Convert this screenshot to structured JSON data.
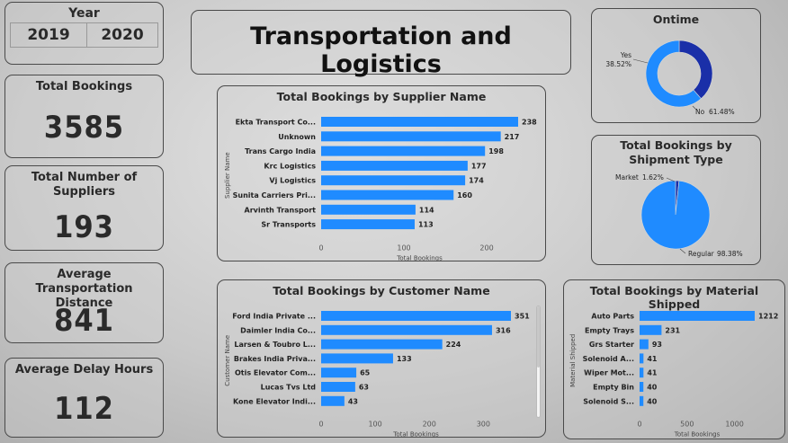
{
  "title": "Transportation and Logistics",
  "year": {
    "label": "Year",
    "options": [
      "2019",
      "2020"
    ]
  },
  "kpis": {
    "total_bookings": {
      "label": "Total Bookings",
      "value": "3585"
    },
    "suppliers": {
      "label": "Total Number of Suppliers",
      "value": "193"
    },
    "distance": {
      "label": "Average Transportation Distance",
      "value": "841"
    },
    "delay": {
      "label": "Average Delay Hours",
      "value": "112"
    }
  },
  "colors": {
    "bar": "#1f8bff",
    "dark": "#1a2fa8"
  },
  "chart_data": [
    {
      "id": "supplier",
      "type": "bar",
      "orientation": "horizontal",
      "title": "Total Bookings by Supplier Name",
      "xlabel": "Total Bookings",
      "ylabel": "Supplier Name",
      "categories": [
        "Ekta Transport Co...",
        "Unknown",
        "Trans Cargo India",
        "Krc Logistics",
        "Vj Logistics",
        "Sunita Carriers Pri...",
        "Arvinth Transport",
        "Sr Transports"
      ],
      "values": [
        238,
        217,
        198,
        177,
        174,
        160,
        114,
        113
      ],
      "xticks": [
        0,
        100,
        200
      ],
      "xlim": [
        0,
        238
      ]
    },
    {
      "id": "customer",
      "type": "bar",
      "orientation": "horizontal",
      "title": "Total Bookings by Customer Name",
      "xlabel": "Total Bookings",
      "ylabel": "Customer Name",
      "categories": [
        "Ford India Private ...",
        "Daimler India Co...",
        "Larsen & Toubro L...",
        "Brakes India Priva...",
        "Otis Elevator Com...",
        "Lucas Tvs Ltd",
        "Kone Elevator Indi..."
      ],
      "values": [
        351,
        316,
        224,
        133,
        65,
        63,
        43
      ],
      "xticks": [
        0,
        100,
        200,
        300
      ],
      "xlim": [
        0,
        351
      ]
    },
    {
      "id": "material",
      "type": "bar",
      "orientation": "horizontal",
      "title": "Total Bookings by Material Shipped",
      "xlabel": "Total Bookings",
      "ylabel": "Material Shipped",
      "categories": [
        "Auto Parts",
        "Empty Trays",
        "Grs Starter",
        "Solenoid A...",
        "Wiper Mot...",
        "Empty Bin",
        "Solenoid S..."
      ],
      "values": [
        1212,
        231,
        93,
        41,
        41,
        40,
        40
      ],
      "xticks": [
        0,
        500,
        1000
      ],
      "xlim": [
        0,
        1212
      ]
    },
    {
      "id": "ontime",
      "type": "pie",
      "variant": "donut",
      "title": "Ontime",
      "slices": [
        {
          "label": "Yes",
          "value": 38.52,
          "display": "38.52%",
          "color": "#1a2fa8"
        },
        {
          "label": "No",
          "value": 61.48,
          "display": "61.48%",
          "color": "#1f8bff"
        }
      ]
    },
    {
      "id": "shipment",
      "type": "pie",
      "title": "Total Bookings by Shipment Type",
      "slices": [
        {
          "label": "Market",
          "value": 1.62,
          "display": "1.62%",
          "color": "#1a2fa8"
        },
        {
          "label": "Regular",
          "value": 98.38,
          "display": "98.38%",
          "color": "#1f8bff"
        }
      ]
    }
  ]
}
